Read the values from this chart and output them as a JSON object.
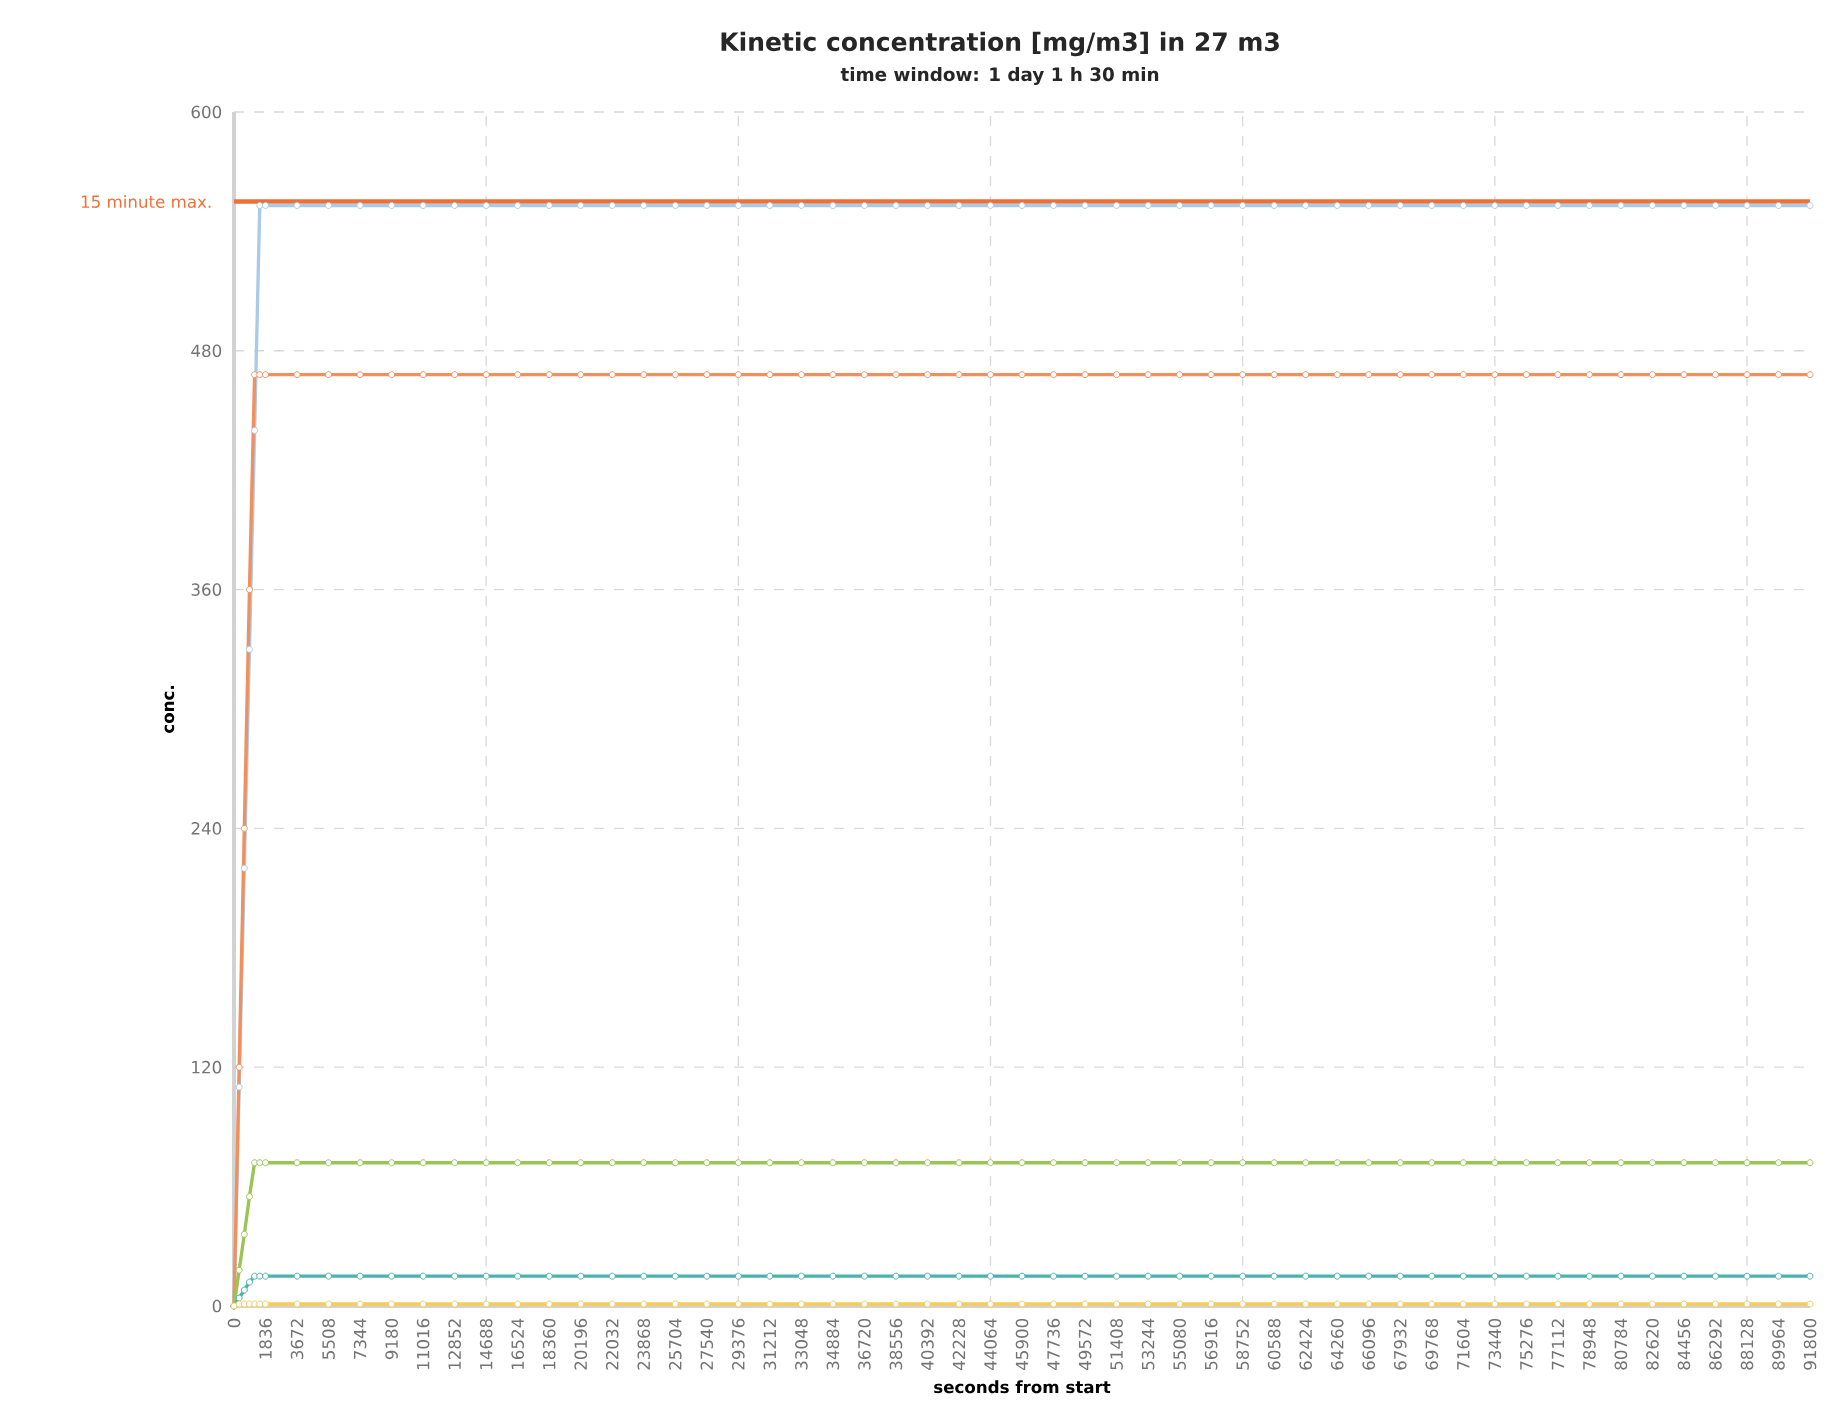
{
  "chart_data": {
    "type": "line",
    "title": "Kinetic concentration [mg/m3] in 27 m3",
    "subtitle": "time window: 1 day 1 h 30 min",
    "xlabel": "seconds from start",
    "ylabel": "conc.",
    "x": [
      0,
      300,
      600,
      900,
      1200,
      1500,
      1836,
      3672,
      5508,
      7344,
      9180,
      11016,
      12852,
      14688,
      16524,
      18360,
      20196,
      22032,
      23868,
      25704,
      27540,
      29376,
      31212,
      33048,
      34884,
      36720,
      38556,
      40392,
      42228,
      44064,
      45900,
      47736,
      49572,
      51408,
      53244,
      55080,
      56916,
      58752,
      60588,
      62424,
      64260,
      66096,
      67932,
      69768,
      71604,
      73440,
      75276,
      77112,
      78948,
      80784,
      82620,
      84456,
      86292,
      88128,
      89964,
      91800
    ],
    "series": [
      {
        "color": "#a9cbe8",
        "values": [
          0,
          110,
          220,
          330,
          440,
          553,
          553,
          553,
          553,
          553,
          553,
          553,
          553,
          553,
          553,
          553,
          553,
          553,
          553,
          553,
          553,
          553,
          553,
          553,
          553,
          553,
          553,
          553,
          553,
          553,
          553,
          553,
          553,
          553,
          553,
          553,
          553,
          553,
          553,
          553,
          553,
          553,
          553,
          553,
          553,
          553,
          553,
          553,
          553,
          553,
          553,
          553,
          553,
          553,
          553,
          553
        ]
      },
      {
        "color": "#f0905e",
        "values": [
          0,
          120,
          240,
          360,
          468,
          468,
          468,
          468,
          468,
          468,
          468,
          468,
          468,
          468,
          468,
          468,
          468,
          468,
          468,
          468,
          468,
          468,
          468,
          468,
          468,
          468,
          468,
          468,
          468,
          468,
          468,
          468,
          468,
          468,
          468,
          468,
          468,
          468,
          468,
          468,
          468,
          468,
          468,
          468,
          468,
          468,
          468,
          468,
          468,
          468,
          468,
          468,
          468,
          468,
          468,
          468
        ]
      },
      {
        "color": "#9ac454",
        "values": [
          0,
          18,
          36,
          55,
          72,
          72,
          72,
          72,
          72,
          72,
          72,
          72,
          72,
          72,
          72,
          72,
          72,
          72,
          72,
          72,
          72,
          72,
          72,
          72,
          72,
          72,
          72,
          72,
          72,
          72,
          72,
          72,
          72,
          72,
          72,
          72,
          72,
          72,
          72,
          72,
          72,
          72,
          72,
          72,
          72,
          72,
          72,
          72,
          72,
          72,
          72,
          72,
          72,
          72,
          72,
          72
        ]
      },
      {
        "color": "#4fb1ad",
        "values": [
          0,
          4,
          8,
          12,
          15,
          15,
          15,
          15,
          15,
          15,
          15,
          15,
          15,
          15,
          15,
          15,
          15,
          15,
          15,
          15,
          15,
          15,
          15,
          15,
          15,
          15,
          15,
          15,
          15,
          15,
          15,
          15,
          15,
          15,
          15,
          15,
          15,
          15,
          15,
          15,
          15,
          15,
          15,
          15,
          15,
          15,
          15,
          15,
          15,
          15,
          15,
          15,
          15,
          15,
          15,
          15
        ]
      },
      {
        "color": "#f5cd5a",
        "values": [
          0,
          1,
          1,
          1,
          1,
          1,
          1,
          1,
          1,
          1,
          1,
          1,
          1,
          1,
          1,
          1,
          1,
          1,
          1,
          1,
          1,
          1,
          1,
          1,
          1,
          1,
          1,
          1,
          1,
          1,
          1,
          1,
          1,
          1,
          1,
          1,
          1,
          1,
          1,
          1,
          1,
          1,
          1,
          1,
          1,
          1,
          1,
          1,
          1,
          1,
          1,
          1,
          1,
          1,
          1,
          1
        ]
      }
    ],
    "xlim": [
      0,
      91800
    ],
    "xticks": [
      0,
      1836,
      3672,
      5508,
      7344,
      9180,
      11016,
      12852,
      14688,
      16524,
      18360,
      20196,
      22032,
      23868,
      25704,
      27540,
      29376,
      31212,
      33048,
      34884,
      36720,
      38556,
      40392,
      42228,
      44064,
      45900,
      47736,
      49572,
      51408,
      53244,
      55080,
      56916,
      58752,
      60588,
      62424,
      64260,
      66096,
      67932,
      69768,
      71604,
      73440,
      75276,
      77112,
      78948,
      80784,
      82620,
      84456,
      86292,
      88128,
      89964,
      91800
    ],
    "ylim": [
      0,
      600
    ],
    "yticks": [
      0,
      120,
      240,
      360,
      480,
      600
    ],
    "ref_lines": [
      {
        "axis": "y",
        "value": 555,
        "label": "15 minute max.",
        "color": "#ef7036"
      }
    ],
    "grid": true,
    "marker": "circle",
    "line_style": "solid"
  }
}
